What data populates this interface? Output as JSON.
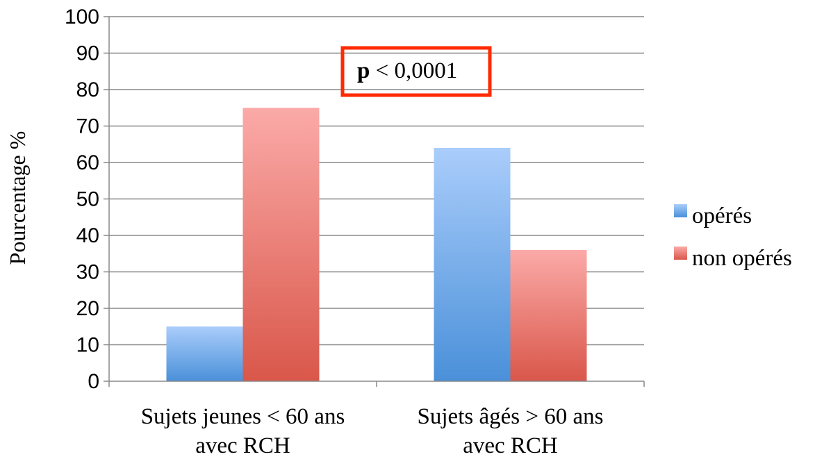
{
  "chart_data": {
    "type": "bar",
    "categories": [
      [
        "Sujets jeunes < 60 ans",
        "avec RCH"
      ],
      [
        "Sujets âgés > 60 ans",
        "avec RCH"
      ]
    ],
    "series": [
      {
        "name": "opérés",
        "values": [
          15,
          64
        ],
        "color_top": "#aacdfb",
        "color_bottom": "#4a90d9"
      },
      {
        "name": "non opérés",
        "values": [
          75,
          36
        ],
        "color_top": "#fbaaa8",
        "color_bottom": "#d9574a"
      }
    ],
    "ylabel": "Pourcentage %",
    "xlabel": "",
    "ylim": [
      0,
      100
    ],
    "yticks": [
      0,
      10,
      20,
      30,
      40,
      50,
      60,
      70,
      80,
      90,
      100
    ],
    "grid": true,
    "gridline_color": "#888888",
    "legend_position": "right",
    "annotation": {
      "bold": "p",
      "rest": " < 0,0001",
      "box_color": "#ff2a00"
    }
  }
}
